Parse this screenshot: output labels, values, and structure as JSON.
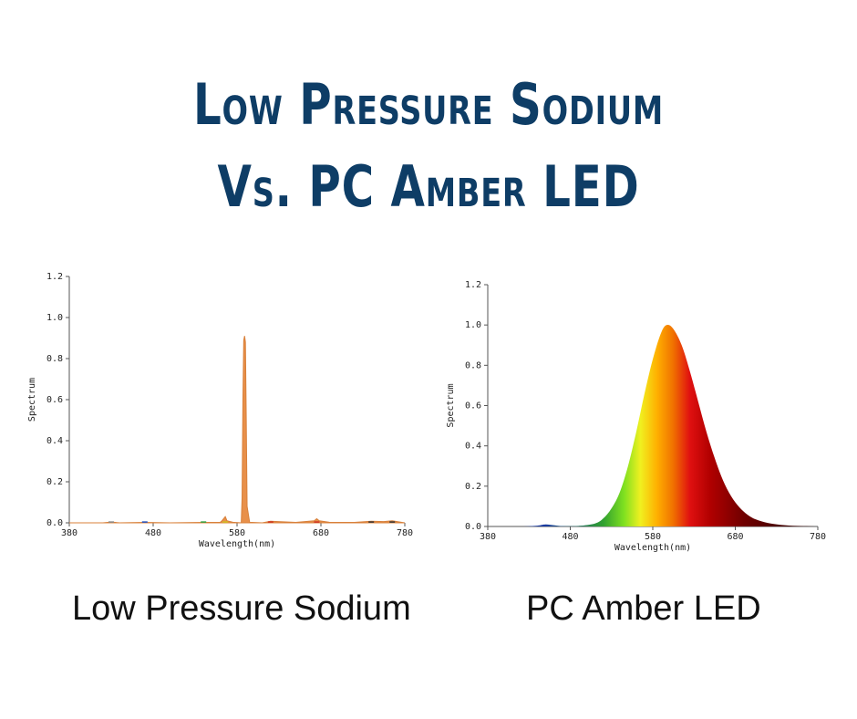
{
  "title": {
    "line1": "Low Pressure Sodium",
    "line2": "Vs. PC Amber  LED"
  },
  "captions": {
    "left": "Low Pressure Sodium",
    "right": "PC Amber LED"
  },
  "chart_data": [
    {
      "type": "area",
      "name": "Low Pressure Sodium",
      "xlabel": "Wavelength(nm)",
      "ylabel": "Spectrum",
      "xlim": [
        380,
        780
      ],
      "ylim": [
        0,
        1.2
      ],
      "xticks": [
        380,
        480,
        580,
        680,
        780
      ],
      "yticks": [
        "0.0",
        "0.2",
        "0.4",
        "0.6",
        "0.8",
        "1.0",
        "1.2"
      ],
      "x": [
        380,
        420,
        430,
        440,
        470,
        500,
        540,
        560,
        562,
        566,
        568,
        575,
        585,
        586,
        587,
        588,
        589,
        590,
        591,
        592,
        595,
        610,
        620,
        650,
        672,
        675,
        678,
        690,
        720,
        740,
        755,
        765,
        780
      ],
      "y": [
        0.0,
        0.0,
        0.004,
        0.0,
        0.002,
        0.0,
        0.002,
        0.003,
        0.01,
        0.03,
        0.01,
        0.003,
        0.0,
        0.12,
        0.6,
        0.89,
        0.91,
        0.88,
        0.5,
        0.08,
        0.003,
        0.0,
        0.008,
        0.002,
        0.01,
        0.02,
        0.01,
        0.003,
        0.002,
        0.008,
        0.006,
        0.01,
        0.0
      ],
      "colors": [
        "#cccccc",
        "#2050c0",
        "#30a040",
        "#d0c020",
        "#e8904a",
        "#d03020",
        "#333333"
      ]
    },
    {
      "type": "area",
      "name": "PC Amber LED",
      "xlabel": "Wavelength(nm)",
      "ylabel": "Spectrum",
      "xlim": [
        380,
        780
      ],
      "ylim": [
        0,
        1.2
      ],
      "xticks": [
        380,
        480,
        580,
        680,
        780
      ],
      "yticks": [
        "0.0",
        "0.2",
        "0.4",
        "0.6",
        "0.8",
        "1.0",
        "1.2"
      ],
      "peak_nm": 597,
      "x": [
        380,
        420,
        440,
        450,
        460,
        470,
        490,
        510,
        520,
        530,
        540,
        550,
        560,
        570,
        580,
        590,
        597,
        605,
        615,
        625,
        635,
        645,
        655,
        665,
        675,
        685,
        695,
        705,
        720,
        740,
        760,
        780
      ],
      "y": [
        0.0,
        0.0,
        0.004,
        0.01,
        0.006,
        0.002,
        0.003,
        0.015,
        0.04,
        0.09,
        0.17,
        0.3,
        0.47,
        0.66,
        0.83,
        0.96,
        1.0,
        0.98,
        0.9,
        0.77,
        0.62,
        0.47,
        0.34,
        0.23,
        0.15,
        0.095,
        0.058,
        0.035,
        0.017,
        0.006,
        0.002,
        0.0
      ],
      "gradient": [
        "#1a3aa0",
        "#30a030",
        "#7fe020",
        "#f0f020",
        "#ffb000",
        "#f07000",
        "#e01010",
        "#b00000",
        "#700000",
        "#300000"
      ]
    }
  ]
}
